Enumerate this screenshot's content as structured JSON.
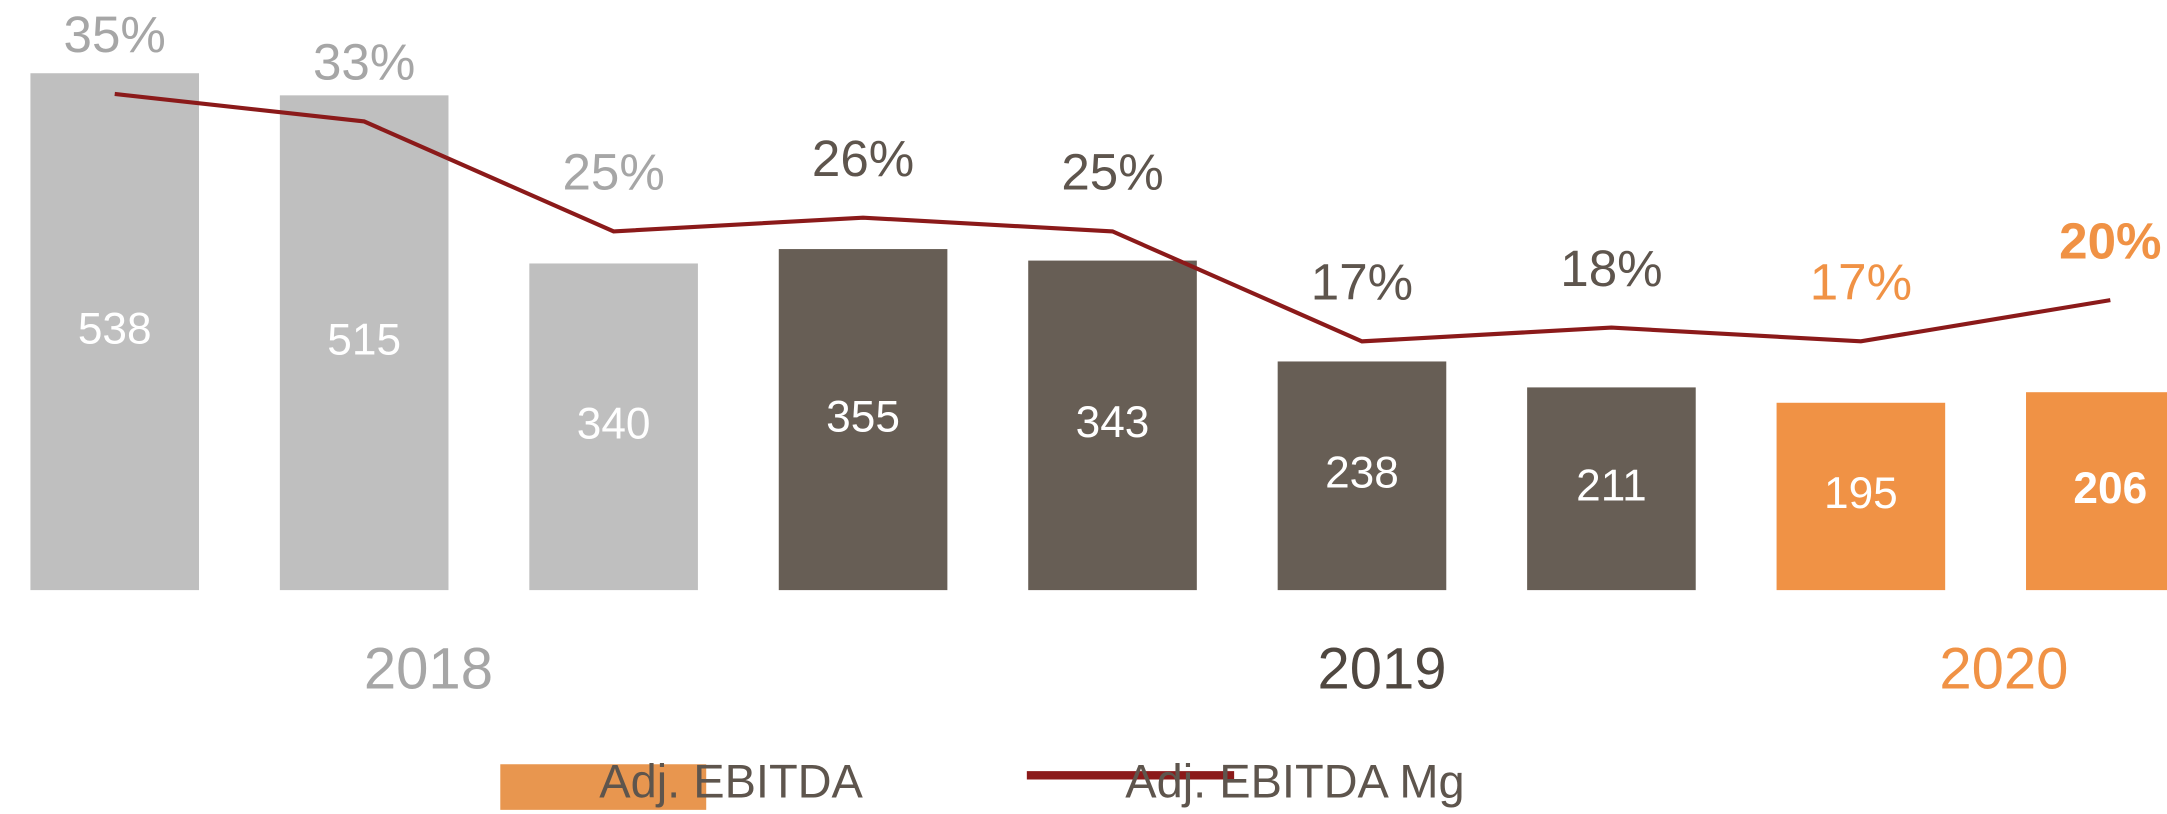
{
  "chart_data": {
    "type": "bar_line",
    "categories": [
      null,
      null,
      null,
      null,
      null,
      null,
      null,
      null,
      null
    ],
    "series": [
      {
        "name": "Adj. EBITDA",
        "color": "#e8964f",
        "values": [
          538,
          515,
          340,
          355,
          343,
          238,
          211,
          195,
          206
        ],
        "colors": [
          "#bfbfbf",
          "#bfbfbf",
          "#bfbfbf",
          "#675e55",
          "#675e55",
          "#675e55",
          "#675e55",
          "#f09245",
          "#f09245"
        ],
        "bold": [
          false,
          false,
          false,
          false,
          false,
          false,
          false,
          false,
          true
        ]
      },
      {
        "name": "Adj. EBITDA Mg",
        "color": "#8b1a1a",
        "axis": "y2",
        "values": [
          35,
          33,
          25,
          26,
          25,
          17,
          18,
          17,
          20
        ],
        "value_labels": [
          "35%",
          "33%",
          "25%",
          "26%",
          "25%",
          "17%",
          "18%",
          "17%",
          "20%"
        ],
        "label_colors": [
          "#a6a6a6",
          "#a6a6a6",
          "#a6a6a6",
          "#5e554d",
          "#5e554d",
          "#5e554d",
          "#5e554d",
          "#f09245",
          "#f09245"
        ],
        "bold": [
          false,
          false,
          false,
          false,
          false,
          false,
          false,
          false,
          true
        ]
      }
    ],
    "groups": [
      {
        "label": "2018",
        "color": "#a6a6a6"
      },
      {
        "label": "2019",
        "color": "#4f4740"
      },
      {
        "label": "2020",
        "color": "#f09245"
      }
    ],
    "legend": "bottom"
  }
}
